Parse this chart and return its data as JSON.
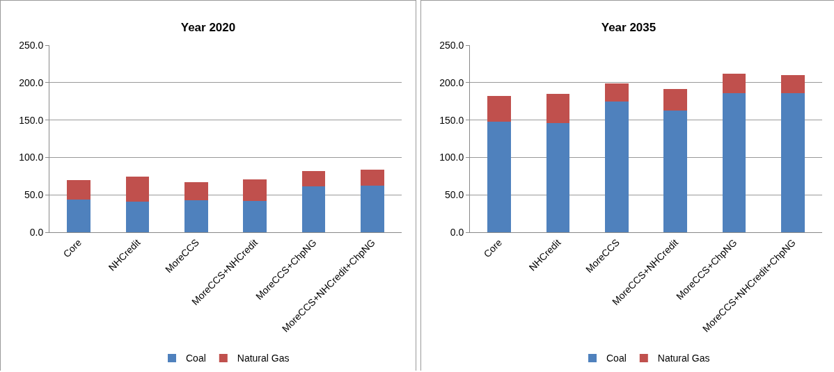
{
  "chart_data": [
    {
      "type": "bar",
      "title": "Year 2020",
      "stacked": true,
      "categories": [
        "Core",
        "NHCredit",
        "MoreCCS",
        "MoreCCS+NHCredit",
        "MoreCCS+ChpNG",
        "MoreCCS+NHCredit+ChpNG"
      ],
      "series": [
        {
          "name": "Coal",
          "color": "#4f81bd",
          "values": [
            44,
            41,
            43,
            42,
            61,
            62
          ]
        },
        {
          "name": "Natural Gas",
          "color": "#c0504d",
          "values": [
            26,
            33,
            24,
            29,
            21,
            22
          ]
        }
      ],
      "ylim": [
        0,
        250
      ],
      "yticks": [
        {
          "value": 0,
          "label": "0.0"
        },
        {
          "value": 50,
          "label": "50.0"
        },
        {
          "value": 100,
          "label": "100.0"
        },
        {
          "value": 150,
          "label": "150.0"
        },
        {
          "value": 200,
          "label": "200.0"
        },
        {
          "value": 250,
          "label": "250.0"
        }
      ],
      "grid": "y",
      "legend": "bottom"
    },
    {
      "type": "bar",
      "title": "Year 2035",
      "stacked": true,
      "categories": [
        "Core",
        "NHCredit",
        "MoreCCS",
        "MoreCCS+NHCredit",
        "MoreCCS+ChpNG",
        "MoreCCS+NHCredit+ChpNG"
      ],
      "series": [
        {
          "name": "Coal",
          "color": "#4f81bd",
          "values": [
            148,
            146,
            175,
            163,
            186,
            186
          ]
        },
        {
          "name": "Natural Gas",
          "color": "#c0504d",
          "values": [
            34,
            39,
            24,
            28,
            26,
            24
          ]
        }
      ],
      "ylim": [
        0,
        250
      ],
      "yticks": [
        {
          "value": 0,
          "label": "0.0"
        },
        {
          "value": 50,
          "label": "50.0"
        },
        {
          "value": 100,
          "label": "100.0"
        },
        {
          "value": 150,
          "label": "150.0"
        },
        {
          "value": 200,
          "label": "200.0"
        },
        {
          "value": 250,
          "label": "250.0"
        }
      ],
      "grid": "y",
      "legend": "bottom"
    }
  ]
}
